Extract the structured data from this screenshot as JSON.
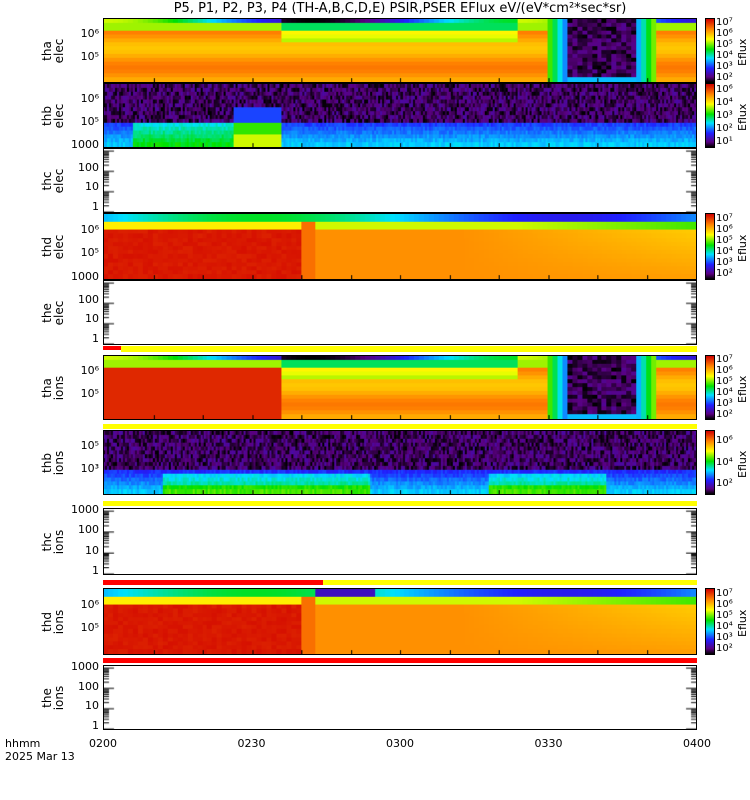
{
  "title": "P5, P1, P2, P3, P4 (TH-A,B,C,D,E) PSIR,PSER EFlux eV/(eV*cm²*sec*sr)",
  "panels": [
    {
      "id": "tha-elec",
      "l1": "tha",
      "l2": "elec",
      "kind": "tha",
      "ticks": [
        "10⁶",
        "10⁵"
      ],
      "cbar": [
        "10⁷",
        "10⁶",
        "10⁵",
        "10⁴",
        "10³",
        "10²"
      ],
      "cbtitle": "Eflux"
    },
    {
      "id": "thb-elec",
      "l1": "thb",
      "l2": "elec",
      "kind": "thb",
      "ticks": [
        "10⁶",
        "10⁵",
        "1000"
      ],
      "cbar": [
        "10⁶",
        "10⁴",
        "10³",
        "10²",
        "10¹"
      ],
      "cbtitle": "Eflux"
    },
    {
      "id": "thc-elec",
      "l1": "thc",
      "l2": "elec",
      "kind": "empty",
      "ticks": [
        "100",
        "10",
        "1"
      ]
    },
    {
      "id": "thd-elec",
      "l1": "thd",
      "l2": "elec",
      "kind": "thd",
      "ticks": [
        "10⁶",
        "10⁵",
        "1000"
      ],
      "cbar": [
        "10⁷",
        "10⁶",
        "10⁵",
        "10⁴",
        "10³",
        "10²"
      ],
      "cbtitle": "Eflux"
    },
    {
      "id": "the-elec",
      "l1": "the",
      "l2": "elec",
      "kind": "empty",
      "ticks": [
        "100",
        "10",
        "1"
      ]
    },
    {
      "id": "tha-ions",
      "l1": "tha",
      "l2": "ions",
      "kind": "tha2",
      "ticks": [
        "10⁶",
        "10⁵"
      ],
      "cbar": [
        "10⁷",
        "10⁶",
        "10⁵",
        "10⁴",
        "10³",
        "10²"
      ],
      "cbtitle": "Eflux"
    },
    {
      "id": "thb-ions",
      "l1": "thb",
      "l2": "ions",
      "kind": "thbi",
      "ticks": [
        "10⁵",
        "10³"
      ],
      "cbar": [
        "10⁶",
        "10⁴",
        "10²"
      ],
      "cbtitle": "Eflux"
    },
    {
      "id": "thc-ions",
      "l1": "thc",
      "l2": "ions",
      "kind": "empty",
      "ticks": [
        "1000",
        "100",
        "10",
        "1"
      ]
    },
    {
      "id": "thd-ions",
      "l1": "thd",
      "l2": "ions",
      "kind": "thd2",
      "ticks": [
        "10⁶",
        "10⁵"
      ],
      "cbar": [
        "10⁷",
        "10⁶",
        "10⁵",
        "10⁴",
        "10³",
        "10²"
      ],
      "cbtitle": "Eflux"
    },
    {
      "id": "the-ions",
      "l1": "the",
      "l2": "ions",
      "kind": "empty",
      "ticks": [
        "1000",
        "100",
        "10",
        "1"
      ]
    }
  ],
  "xaxis": {
    "ticks": [
      "0200",
      "0230",
      "0300",
      "0330",
      "0400"
    ],
    "unit": "hhmm",
    "date": "2025 Mar 13"
  },
  "colors": {
    "bar_red": "#ff0000",
    "bar_yellow": "#ffff00"
  }
}
